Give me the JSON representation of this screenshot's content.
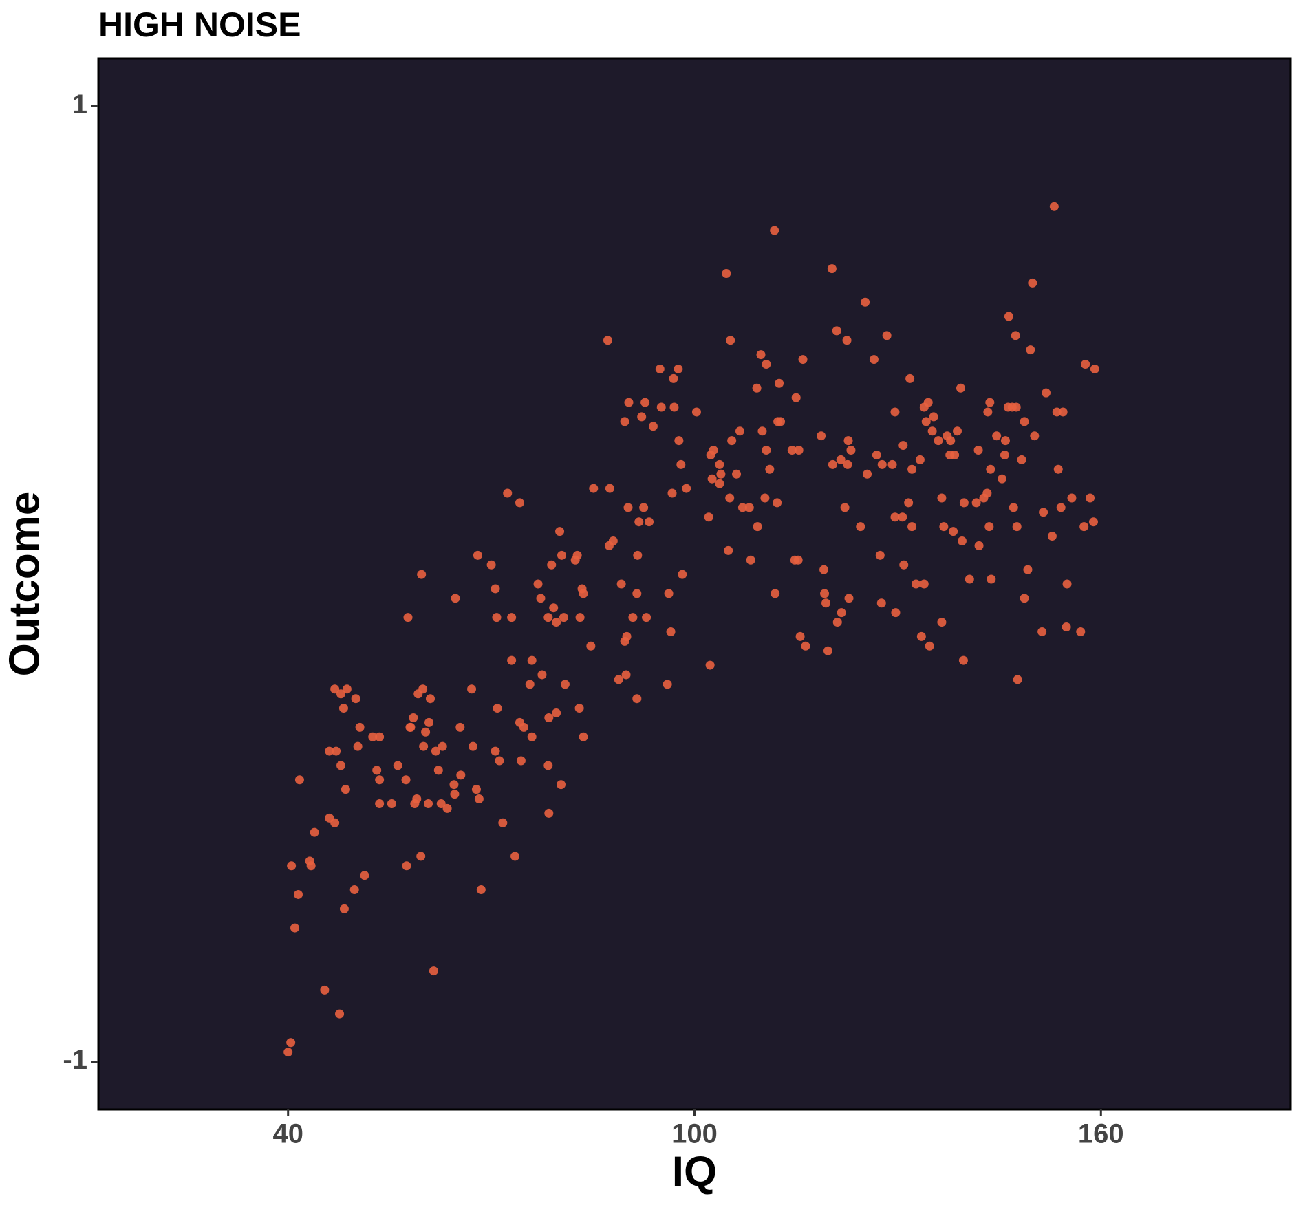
{
  "chart_data": {
    "type": "scatter",
    "title": "HIGH NOISE",
    "x_label": "IQ",
    "y_label": "Outcome",
    "xlim": [
      12,
      188
    ],
    "ylim": [
      -1.1,
      1.1
    ],
    "xticks": [
      40,
      100,
      160
    ],
    "yticks": [
      -1,
      1
    ],
    "background": "#1e1a2a",
    "color": "#e8603f",
    "x": [
      40,
      40.4,
      40.5,
      41,
      41.5,
      41.7,
      43.2,
      43.4,
      43.9,
      45.4,
      46.1,
      46.1,
      46.9,
      46.9,
      47.1,
      47.6,
      47.8,
      47.8,
      48.2,
      48.3,
      48.5,
      48.7,
      49.8,
      50,
      50.3,
      50.6,
      51.3,
      52.5,
      53.1,
      53.5,
      53.5,
      53.5,
      55.3,
      56.2,
      57.4,
      57.5,
      57.7,
      58,
      58.1,
      58.5,
      58.7,
      59,
      59.6,
      59.7,
      59.2,
      59.9,
      60,
      60.3,
      60.7,
      60.8,
      61,
      61.5,
      61.8,
      62.2,
      62.6,
      62.8,
      63.5,
      64.5,
      64.7,
      64.6,
      65.4,
      65.5,
      67.1,
      67.3,
      67.8,
      68,
      68.2,
      68.5,
      70,
      70.6,
      70.6,
      70.8,
      70.9,
      71.2,
      71.7,
      72.4,
      73,
      73,
      73.5,
      74.2,
      74.2,
      74.4,
      74.8,
      75.7,
      76,
      76,
      76.9,
      77.3,
      77.5,
      78.4,
      78.4,
      78.5,
      78.5,
      78.9,
      79.2,
      79.6,
      79.6,
      80.1,
      80.3,
      80.4,
      80.7,
      80.9,
      82.4,
      82.7,
      83,
      83.1,
      83.4,
      83.6,
      83.6,
      84.7,
      85.1,
      87.2,
      87.4,
      87.5,
      88,
      88.8,
      89.2,
      89.7,
      89.7,
      89.9,
      90,
      90.2,
      90.3,
      90.9,
      91.5,
      91.5,
      91.6,
      91.8,
      92.2,
      92.5,
      92.7,
      92.9,
      93.3,
      93.9,
      94.9,
      95.1,
      96,
      96.2,
      96.5,
      96.7,
      96.9,
      97,
      97.6,
      97.7,
      98,
      98.2,
      98.8,
      100.3,
      102.1,
      102.3,
      102.4,
      102.6,
      102.8,
      103.7,
      103.7,
      103.9,
      104.7,
      105,
      105.2,
      105.3,
      105.5,
      106.2,
      106.7,
      107.1,
      108.1,
      108.3,
      109.2,
      109.3,
      109.8,
      110,
      110.4,
      110.6,
      110.6,
      111.1,
      111.8,
      111.9,
      112.2,
      112.3,
      112.5,
      112.7,
      114.4,
      114.8,
      115,
      115.3,
      115.4,
      115.6,
      116,
      116.4,
      118.7,
      119.1,
      119.2,
      119.4,
      119.7,
      120.3,
      120.4,
      121,
      121.1,
      121.6,
      121.7,
      122.2,
      122.5,
      122.6,
      122.7,
      122.8,
      123.1,
      124.5,
      125.2,
      125.5,
      126.5,
      126.9,
      127.4,
      127.6,
      127.7,
      128.4,
      129.2,
      129.6,
      129.6,
      129.7,
      130.7,
      130.8,
      130.9,
      131.6,
      131.8,
      132.1,
      132.1,
      132.7,
      133.3,
      133.5,
      133.9,
      133.9,
      134.2,
      134.5,
      134.7,
      135.1,
      135.3,
      136,
      136.5,
      136.5,
      136.8,
      137.3,
      137.7,
      137.8,
      138.2,
      138.4,
      138.8,
      139.3,
      139.5,
      139.7,
      139.8,
      140.6,
      141.6,
      141.9,
      142,
      142.7,
      143.2,
      143.3,
      143.5,
      143.6,
      143.7,
      143.8,
      144.6,
      145.4,
      145.8,
      145.9,
      146.3,
      146.4,
      146.9,
      147.1,
      147.4,
      147.5,
      147.6,
      147.7,
      148.3,
      148.7,
      148.7,
      149.2,
      149.6,
      149.9,
      150.2,
      151.3,
      151.5,
      151.9,
      152.8,
      153.1,
      153.5,
      153.7,
      154.1,
      154.4,
      154.9,
      155,
      155.7,
      157,
      157.5,
      157.7,
      158.4,
      158.9,
      159.1
    ],
    "values": [
      -0.98,
      -0.96,
      -0.59,
      -0.72,
      -0.65,
      -0.41,
      -0.58,
      -0.59,
      -0.52,
      -0.85,
      -0.35,
      -0.49,
      -0.5,
      -0.22,
      -0.35,
      -0.9,
      -0.38,
      -0.23,
      -0.26,
      -0.68,
      -0.43,
      -0.22,
      -0.64,
      -0.24,
      -0.34,
      -0.3,
      -0.61,
      -0.32,
      -0.39,
      -0.32,
      -0.41,
      -0.46,
      -0.46,
      -0.38,
      -0.41,
      -0.59,
      -0.07,
      -0.3,
      -0.3,
      -0.28,
      -0.46,
      -0.45,
      -0.57,
      0.02,
      -0.23,
      -0.22,
      -0.34,
      -0.31,
      -0.46,
      -0.29,
      -0.24,
      -0.81,
      -0.35,
      -0.39,
      -0.46,
      -0.34,
      -0.47,
      -0.42,
      -0.03,
      -0.44,
      -0.3,
      -0.4,
      -0.22,
      -0.34,
      -0.43,
      0.06,
      -0.45,
      -0.64,
      0.04,
      -0.01,
      -0.35,
      -0.07,
      -0.26,
      -0.37,
      -0.5,
      0.19,
      -0.16,
      -0.07,
      -0.57,
      0.17,
      -0.29,
      -0.37,
      -0.3,
      -0.21,
      -0.16,
      -0.32,
      0,
      -0.03,
      -0.19,
      -0.07,
      -0.38,
      -0.48,
      -0.28,
      0.04,
      -0.05,
      -0.08,
      -0.27,
      0.11,
      -0.42,
      0.06,
      -0.07,
      -0.21,
      0.05,
      0.06,
      -0.26,
      -0.07,
      -0.01,
      -0.32,
      -0.02,
      -0.13,
      0.2,
      0.51,
      0.08,
      0.2,
      0.09,
      -0.2,
      0,
      0.34,
      -0.12,
      -0.19,
      -0.11,
      0.16,
      0.38,
      -0.07,
      -0.02,
      -0.24,
      0.06,
      0.13,
      0.35,
      0.16,
      0.38,
      -0.07,
      0.13,
      0.33,
      0.45,
      0.37,
      -0.21,
      -0.02,
      -0.1,
      0.19,
      0.43,
      0.37,
      0.45,
      0.3,
      0.25,
      0.02,
      0.2,
      0.36,
      0.14,
      -0.17,
      0.27,
      0.22,
      0.28,
      0.25,
      0.21,
      0.23,
      0.65,
      0.07,
      0.18,
      0.51,
      0.3,
      0.23,
      0.32,
      0.16,
      0.16,
      0.05,
      0.41,
      0.12,
      0.48,
      0.32,
      0.18,
      0.46,
      0.28,
      0.24,
      0.74,
      -0.02,
      0.17,
      0.34,
      0.42,
      0.34,
      0.28,
      0.05,
      0.39,
      0.05,
      0.28,
      -0.11,
      0.47,
      -0.13,
      0.31,
      0.03,
      -0.02,
      -0.04,
      -0.14,
      0.66,
      0.25,
      0.53,
      -0.08,
      0.26,
      -0.06,
      0.16,
      0.51,
      0.25,
      0.3,
      -0.03,
      0.28,
      0.12,
      0.59,
      0.23,
      0.47,
      0.27,
      0.06,
      -0.04,
      0.25,
      0.52,
      0.25,
      0.36,
      0.14,
      -0.06,
      0.14,
      0.29,
      0.04,
      0.17,
      0.43,
      0.24,
      0.12,
      0,
      0.26,
      -0.11,
      0,
      0.37,
      0.34,
      0.38,
      -0.13,
      0.32,
      0.35,
      0.3,
      0.18,
      -0.08,
      0.12,
      0.31,
      0.27,
      0.3,
      0.11,
      0.27,
      0.32,
      0.41,
      0.09,
      -0.16,
      0.17,
      0.01,
      0.17,
      0.28,
      0.08,
      0.18,
      0.19,
      0.36,
      0.12,
      0.38,
      0.24,
      0.01,
      0.31,
      0.22,
      0.27,
      0.3,
      0.37,
      0.56,
      0.37,
      0.16,
      0.52,
      0.37,
      0.12,
      -0.2,
      0.26,
      -0.03,
      0.34,
      0.03,
      0.49,
      0.63,
      0.31,
      -0.1,
      0.15,
      0.4,
      0.1,
      0.79,
      0.36,
      0.24,
      0.16,
      0.36,
      -0.09,
      0,
      0.18,
      -0.1,
      0.12,
      0.46,
      0.18,
      0.13,
      0.45
    ]
  }
}
